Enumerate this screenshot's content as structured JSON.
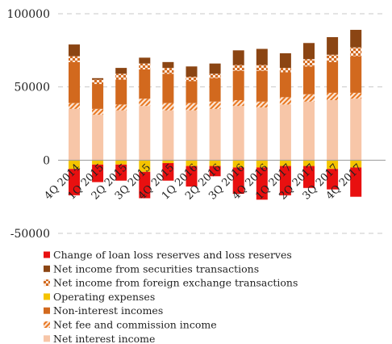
{
  "chart_data": {
    "type": "bar",
    "stacked": true,
    "title": "",
    "xlabel": "",
    "ylabel": "",
    "ylim": [
      -50000,
      100000
    ],
    "yticks": [
      -50000,
      0,
      50000,
      100000
    ],
    "grid": "horizontal dashed",
    "legend_position": "bottom",
    "categories": [
      "4Q 2014",
      "1Q 2015",
      "2Q 2015",
      "3Q 2015",
      "4Q 2015",
      "1Q 2016",
      "2Q 2016",
      "3Q 2016",
      "4Q 2016",
      "1Q 2017",
      "2Q 2017",
      "3Q 2017",
      "4Q 2017"
    ],
    "series": [
      {
        "name": "Net interest income",
        "values": [
          35000,
          31000,
          34000,
          37000,
          34000,
          34000,
          35000,
          37000,
          36000,
          38000,
          40000,
          41000,
          42000
        ],
        "color": "#f7c6a8",
        "pattern": "solid",
        "side": "positive"
      },
      {
        "name": "Net fee and commission income",
        "values": [
          4000,
          4000,
          4000,
          5000,
          5000,
          5000,
          5000,
          4000,
          4000,
          5000,
          5000,
          5000,
          4000
        ],
        "color": "#e8761f",
        "pattern": "stripes",
        "side": "positive"
      },
      {
        "name": "Non-interest incomes",
        "values": [
          28000,
          17000,
          17000,
          20000,
          20000,
          15000,
          16000,
          20000,
          21000,
          17000,
          19000,
          21000,
          25000
        ],
        "color": "#d2691e",
        "pattern": "solid",
        "side": "positive"
      },
      {
        "name": "Net income from foreign exchange transactions",
        "values": [
          4000,
          3000,
          4000,
          4000,
          4000,
          3000,
          3000,
          4000,
          4000,
          3000,
          5000,
          5000,
          6000
        ],
        "color": "#d2691e",
        "pattern": "checks",
        "side": "positive"
      },
      {
        "name": "Net income from securities transactions",
        "values": [
          8000,
          1000,
          4000,
          4000,
          4000,
          7000,
          7000,
          10000,
          11000,
          10000,
          11000,
          12000,
          12000
        ],
        "color": "#8b4513",
        "pattern": "solid",
        "side": "positive"
      },
      {
        "name": "Operating expenses",
        "values": [
          -6000,
          -3000,
          -3000,
          -8000,
          -2000,
          -4000,
          -4000,
          -5000,
          -5000,
          -4000,
          -4000,
          -6000,
          -5000
        ],
        "color": "#f5c400",
        "pattern": "solid",
        "side": "negative"
      },
      {
        "name": "Change of loan loss reserves and loss reserves",
        "values": [
          -18000,
          -12000,
          -11000,
          -18000,
          -12000,
          -14000,
          -7000,
          -18000,
          -22000,
          -20000,
          -15000,
          -14000,
          -20000
        ],
        "color": "#e81010",
        "pattern": "solid",
        "side": "negative"
      }
    ],
    "legend_order": [
      "Change of loan loss reserves and loss reserves",
      "Net income from securities transactions",
      "Net income from foreign exchange transactions",
      "Operating expenses",
      "Non-interest incomes",
      "Net fee and commission income",
      "Net interest income"
    ]
  }
}
